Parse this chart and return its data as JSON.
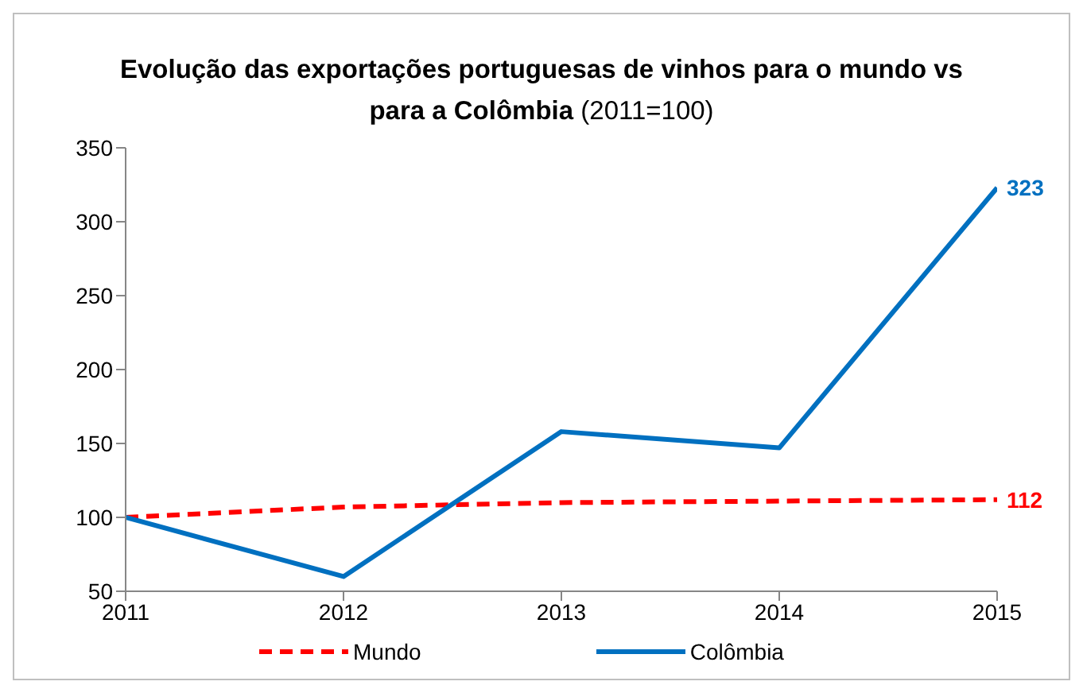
{
  "chart_data": {
    "type": "line",
    "title": "Evolução das exportações portuguesas de vinhos para o mundo vs para a Colômbia",
    "subtitle": "(2011=100)",
    "x": [
      2011,
      2012,
      2013,
      2014,
      2015
    ],
    "xlim": [
      2011,
      2015
    ],
    "xticks": [
      2011,
      2012,
      2013,
      2014,
      2015
    ],
    "ylim": [
      50,
      350
    ],
    "yticks": [
      50,
      100,
      150,
      200,
      250,
      300,
      350
    ],
    "grid": false,
    "legend": "bottom",
    "marker": "none",
    "series": [
      {
        "name": "Mundo",
        "color": "#ff0000",
        "line_style": "dashed",
        "values": [
          100,
          107,
          110,
          111,
          112
        ],
        "value_labels": [
          null,
          null,
          null,
          null,
          "112"
        ]
      },
      {
        "name": "Colômbia",
        "color": "#0070c0",
        "line_style": "solid",
        "values": [
          100,
          60,
          158,
          147,
          323
        ],
        "value_labels": [
          null,
          null,
          null,
          null,
          "323"
        ]
      }
    ]
  }
}
